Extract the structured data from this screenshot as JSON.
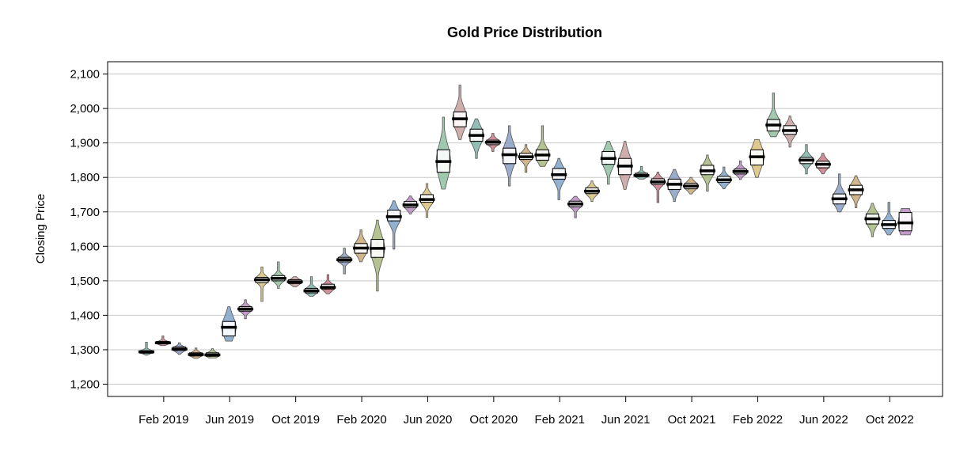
{
  "chart_data": {
    "type": "violin",
    "title": "Gold Price Distribution",
    "xlabel": "",
    "ylabel": "Closing Price",
    "ylim": [
      1170,
      2135
    ],
    "yticks": [
      1200,
      1300,
      1400,
      1500,
      1600,
      1700,
      1800,
      1900,
      2000,
      2100
    ],
    "ytick_labels": [
      "1,200",
      "1,300",
      "1,400",
      "1,500",
      "1,600",
      "1,700",
      "1,800",
      "1,900",
      "2,000",
      "2,100"
    ],
    "xticks": [
      {
        "label": "Feb 2019",
        "month_index": 1
      },
      {
        "label": "Jun 2019",
        "month_index": 5
      },
      {
        "label": "Oct 2019",
        "month_index": 9
      },
      {
        "label": "Feb 2020",
        "month_index": 13
      },
      {
        "label": "Jun 2020",
        "month_index": 17
      },
      {
        "label": "Oct 2020",
        "month_index": 21
      },
      {
        "label": "Feb 2021",
        "month_index": 25
      },
      {
        "label": "Jun 2021",
        "month_index": 29
      },
      {
        "label": "Oct 2021",
        "month_index": 33
      },
      {
        "label": "Feb 2022",
        "month_index": 37
      },
      {
        "label": "Jun 2022",
        "month_index": 41
      },
      {
        "label": "Oct 2022",
        "month_index": 45
      }
    ],
    "grid": "horizontal",
    "months": [
      {
        "month": "Jan 2019",
        "min": 1284,
        "q1": 1290,
        "median": 1294,
        "q3": 1297,
        "max": 1322
      },
      {
        "month": "Feb 2019",
        "min": 1312,
        "q1": 1317,
        "median": 1320,
        "q3": 1324,
        "max": 1340
      },
      {
        "month": "Mar 2019",
        "min": 1286,
        "q1": 1298,
        "median": 1302,
        "q3": 1308,
        "max": 1320
      },
      {
        "month": "Apr 2019",
        "min": 1275,
        "q1": 1282,
        "median": 1286,
        "q3": 1291,
        "max": 1305
      },
      {
        "month": "May 2019",
        "min": 1276,
        "q1": 1281,
        "median": 1285,
        "q3": 1291,
        "max": 1303
      },
      {
        "month": "Jun 2019",
        "min": 1325,
        "q1": 1340,
        "median": 1365,
        "q3": 1382,
        "max": 1425
      },
      {
        "month": "Jul 2019",
        "min": 1390,
        "q1": 1412,
        "median": 1418,
        "q3": 1425,
        "max": 1445
      },
      {
        "month": "Aug 2019",
        "min": 1440,
        "q1": 1495,
        "median": 1503,
        "q3": 1510,
        "max": 1540
      },
      {
        "month": "Sep 2019",
        "min": 1478,
        "q1": 1500,
        "median": 1507,
        "q3": 1515,
        "max": 1555
      },
      {
        "month": "Oct 2019",
        "min": 1483,
        "q1": 1492,
        "median": 1497,
        "q3": 1503,
        "max": 1512
      },
      {
        "month": "Nov 2019",
        "min": 1455,
        "q1": 1465,
        "median": 1471,
        "q3": 1478,
        "max": 1512
      },
      {
        "month": "Dec 2019",
        "min": 1462,
        "q1": 1476,
        "median": 1481,
        "q3": 1490,
        "max": 1518
      },
      {
        "month": "Jan 2020",
        "min": 1520,
        "q1": 1555,
        "median": 1561,
        "q3": 1568,
        "max": 1595
      },
      {
        "month": "Feb 2020",
        "min": 1555,
        "q1": 1580,
        "median": 1595,
        "q3": 1608,
        "max": 1648
      },
      {
        "month": "Mar 2020",
        "min": 1470,
        "q1": 1568,
        "median": 1594,
        "q3": 1620,
        "max": 1676
      },
      {
        "month": "Apr 2020",
        "min": 1592,
        "q1": 1674,
        "median": 1686,
        "q3": 1705,
        "max": 1732
      },
      {
        "month": "May 2020",
        "min": 1694,
        "q1": 1713,
        "median": 1720,
        "q3": 1730,
        "max": 1746
      },
      {
        "month": "Jun 2020",
        "min": 1684,
        "q1": 1728,
        "median": 1736,
        "q3": 1750,
        "max": 1782
      },
      {
        "month": "Jul 2020",
        "min": 1766,
        "q1": 1815,
        "median": 1846,
        "q3": 1880,
        "max": 1975
      },
      {
        "month": "Aug 2020",
        "min": 1910,
        "q1": 1947,
        "median": 1970,
        "q3": 1990,
        "max": 2068
      },
      {
        "month": "Sep 2020",
        "min": 1855,
        "q1": 1905,
        "median": 1922,
        "q3": 1940,
        "max": 1970
      },
      {
        "month": "Oct 2020",
        "min": 1875,
        "q1": 1895,
        "median": 1902,
        "q3": 1908,
        "max": 1928
      },
      {
        "month": "Nov 2020",
        "min": 1775,
        "q1": 1840,
        "median": 1866,
        "q3": 1885,
        "max": 1950
      },
      {
        "month": "Dec 2020",
        "min": 1815,
        "q1": 1852,
        "median": 1860,
        "q3": 1870,
        "max": 1895
      },
      {
        "month": "Jan 2021",
        "min": 1832,
        "q1": 1850,
        "median": 1865,
        "q3": 1880,
        "max": 1950
      },
      {
        "month": "Feb 2021",
        "min": 1735,
        "q1": 1795,
        "median": 1808,
        "q3": 1826,
        "max": 1855
      },
      {
        "month": "Mar 2021",
        "min": 1683,
        "q1": 1715,
        "median": 1723,
        "q3": 1731,
        "max": 1745
      },
      {
        "month": "Apr 2021",
        "min": 1730,
        "q1": 1753,
        "median": 1760,
        "q3": 1770,
        "max": 1790
      },
      {
        "month": "May 2021",
        "min": 1780,
        "q1": 1838,
        "median": 1855,
        "q3": 1875,
        "max": 1905
      },
      {
        "month": "Jun 2021",
        "min": 1765,
        "q1": 1808,
        "median": 1833,
        "q3": 1855,
        "max": 1905
      },
      {
        "month": "Jul 2021",
        "min": 1795,
        "q1": 1802,
        "median": 1806,
        "q3": 1812,
        "max": 1832
      },
      {
        "month": "Aug 2021",
        "min": 1727,
        "q1": 1780,
        "median": 1787,
        "q3": 1796,
        "max": 1815
      },
      {
        "month": "Sep 2021",
        "min": 1730,
        "q1": 1765,
        "median": 1780,
        "q3": 1795,
        "max": 1823
      },
      {
        "month": "Oct 2021",
        "min": 1752,
        "q1": 1767,
        "median": 1775,
        "q3": 1783,
        "max": 1800
      },
      {
        "month": "Nov 2021",
        "min": 1760,
        "q1": 1808,
        "median": 1819,
        "q3": 1835,
        "max": 1865
      },
      {
        "month": "Dec 2021",
        "min": 1767,
        "q1": 1786,
        "median": 1793,
        "q3": 1803,
        "max": 1830
      },
      {
        "month": "Jan 2022",
        "min": 1794,
        "q1": 1810,
        "median": 1817,
        "q3": 1824,
        "max": 1848
      },
      {
        "month": "Feb 2022",
        "min": 1800,
        "q1": 1836,
        "median": 1860,
        "q3": 1880,
        "max": 1910
      },
      {
        "month": "Mar 2022",
        "min": 1918,
        "q1": 1935,
        "median": 1952,
        "q3": 1968,
        "max": 2045
      },
      {
        "month": "Apr 2022",
        "min": 1888,
        "q1": 1925,
        "median": 1936,
        "q3": 1950,
        "max": 1978
      },
      {
        "month": "May 2022",
        "min": 1810,
        "q1": 1840,
        "median": 1850,
        "q3": 1858,
        "max": 1895
      },
      {
        "month": "Jun 2022",
        "min": 1810,
        "q1": 1828,
        "median": 1838,
        "q3": 1847,
        "max": 1870
      },
      {
        "month": "Jul 2022",
        "min": 1700,
        "q1": 1723,
        "median": 1738,
        "q3": 1752,
        "max": 1810
      },
      {
        "month": "Aug 2022",
        "min": 1712,
        "q1": 1750,
        "median": 1764,
        "q3": 1777,
        "max": 1805
      },
      {
        "month": "Sep 2022",
        "min": 1628,
        "q1": 1665,
        "median": 1680,
        "q3": 1694,
        "max": 1725
      },
      {
        "month": "Oct 2022",
        "min": 1633,
        "q1": 1652,
        "median": 1663,
        "q3": 1675,
        "max": 1728
      },
      {
        "month": "Nov 2022",
        "min": 1633,
        "q1": 1645,
        "median": 1668,
        "q3": 1698,
        "max": 1710
      }
    ],
    "colors": [
      "#7fb3a8",
      "#c97a8a",
      "#8a9fc2",
      "#c9a877",
      "#a7b87e",
      "#7fa3c9",
      "#b88abf",
      "#d8c07a",
      "#8fbf9f",
      "#c7a0a0"
    ]
  }
}
